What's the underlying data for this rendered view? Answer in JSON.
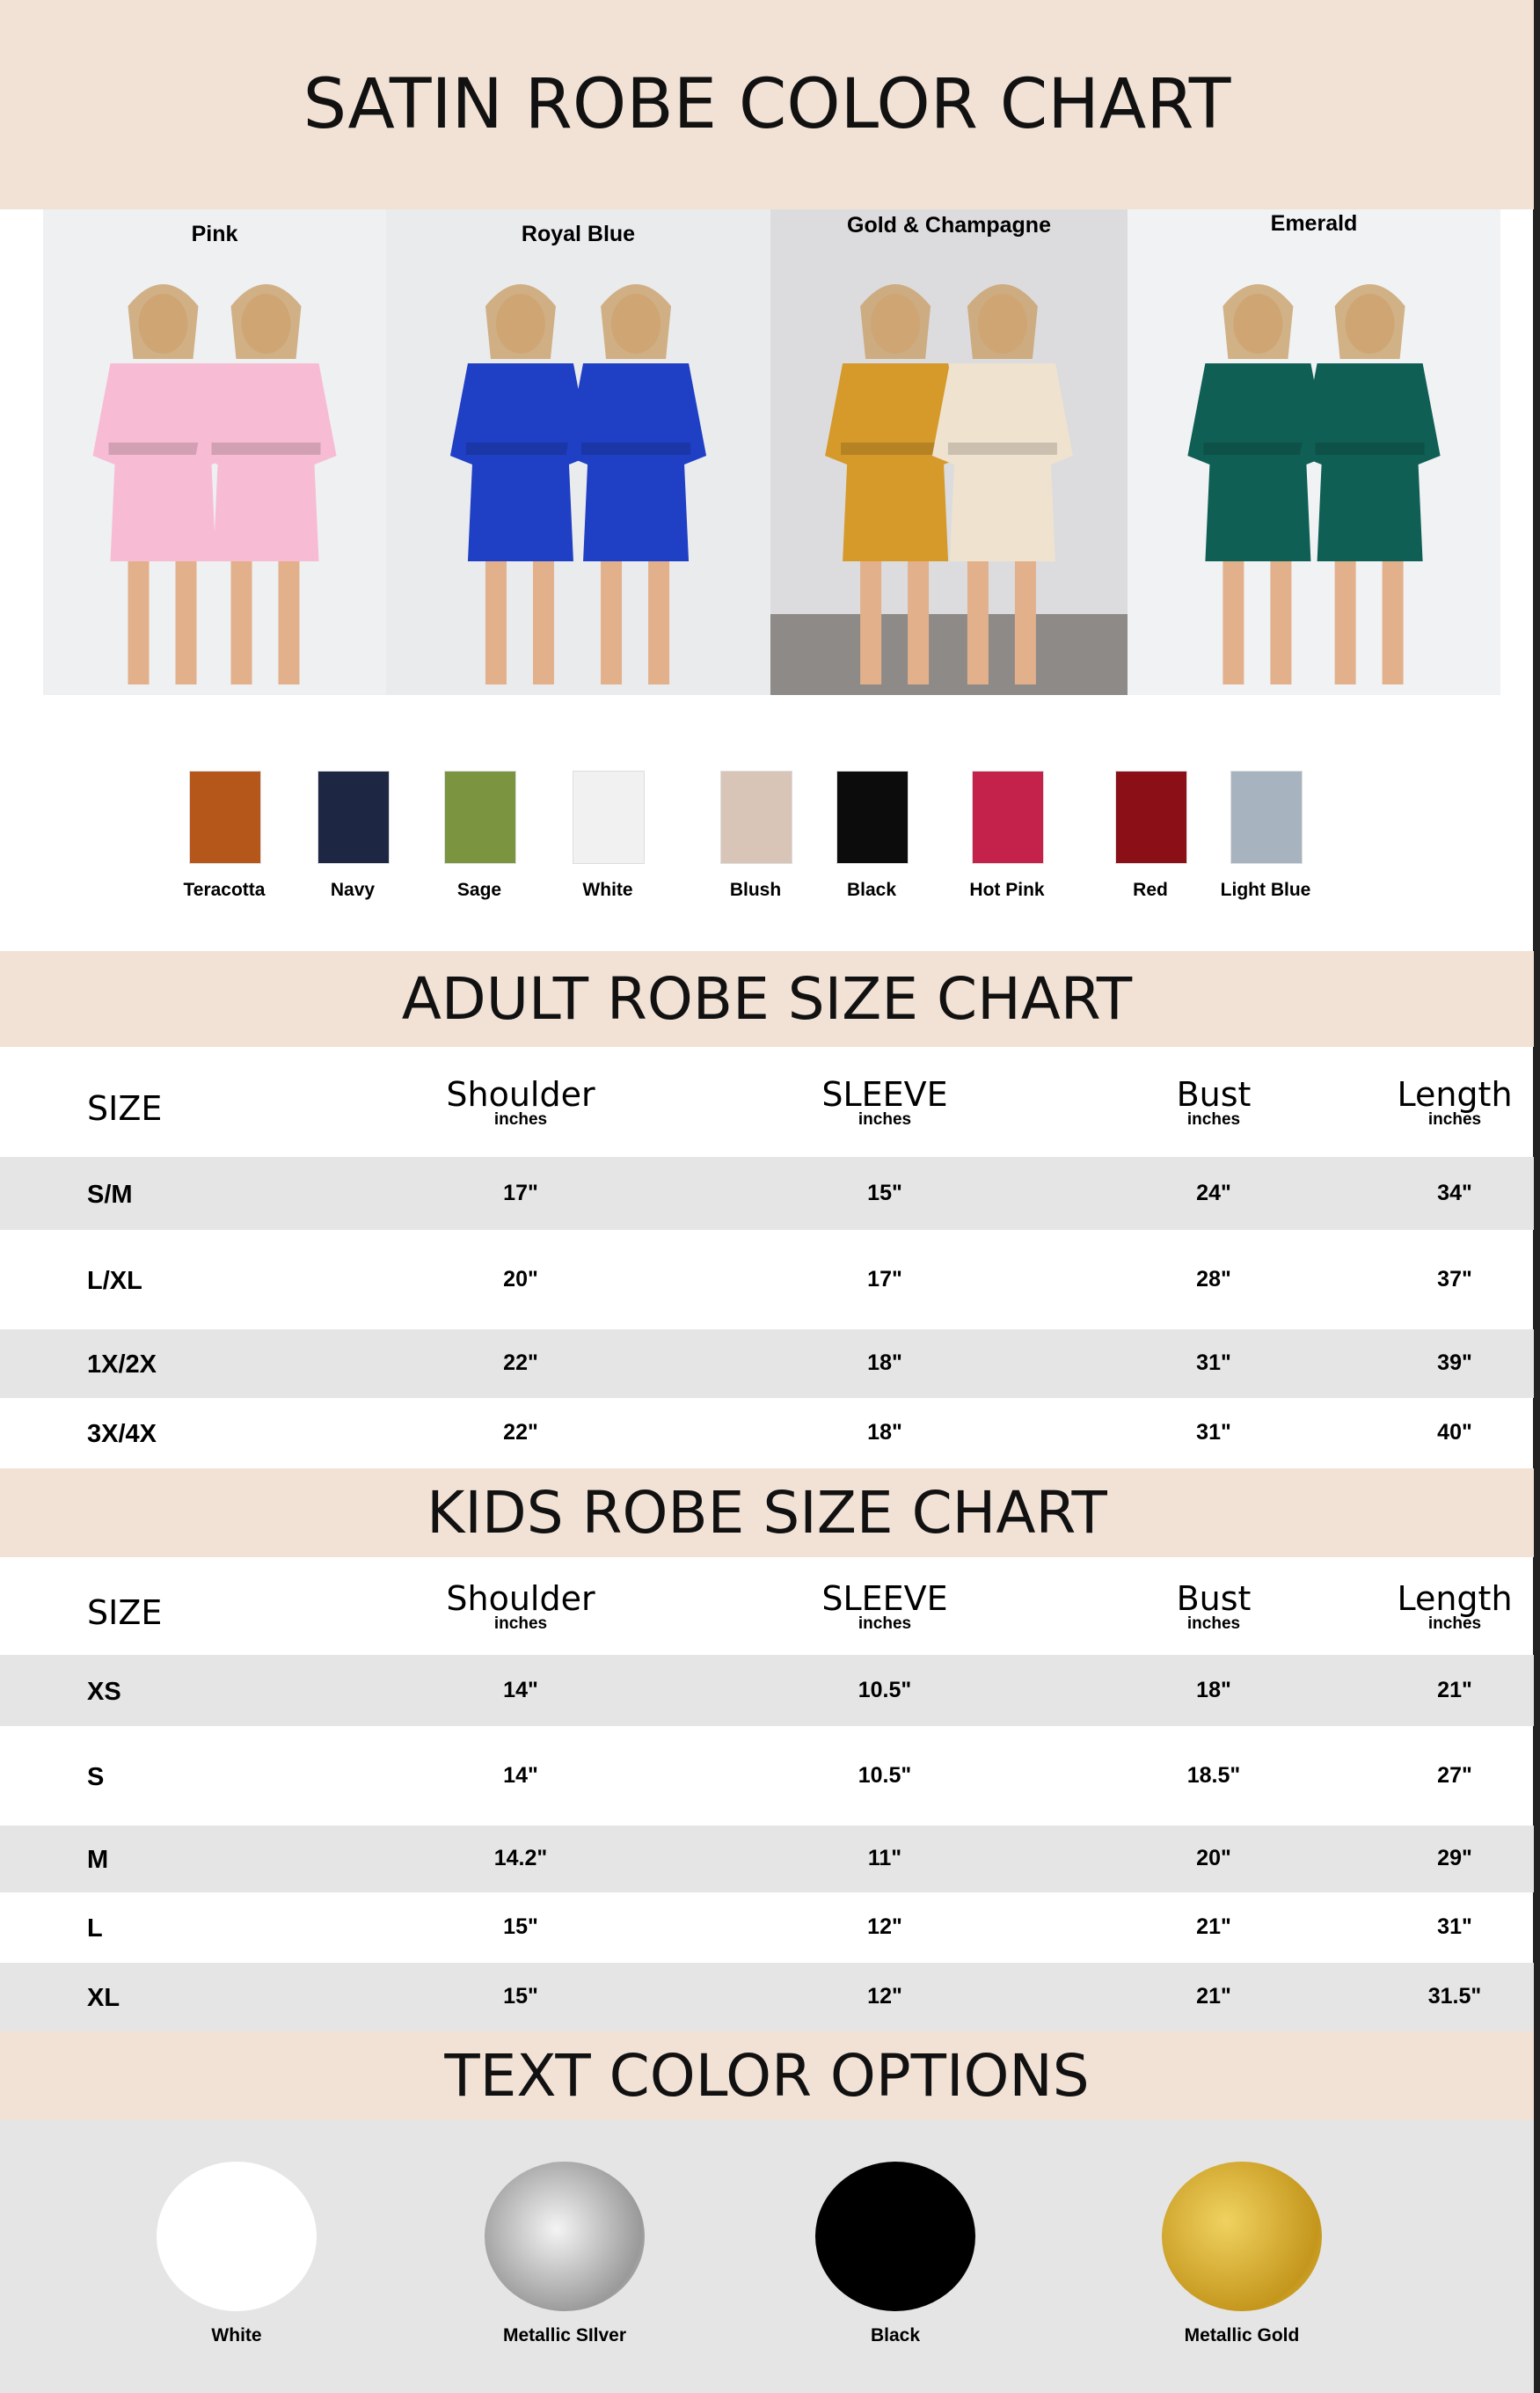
{
  "title": "SATIN ROBE COLOR CHART",
  "photos": [
    {
      "label": "Pink",
      "color": "#f7bcd3",
      "bg": "#eef0f2"
    },
    {
      "label": "Royal Blue",
      "color": "#1f3fc4",
      "bg": "#eaebed"
    },
    {
      "label": "Gold & Champagne",
      "color": "#d59a2a",
      "color2": "#efe2cf",
      "bg": "#dcdcde"
    },
    {
      "label": "Emerald",
      "color": "#0f5f55",
      "bg": "#f1f2f4"
    }
  ],
  "swatches": [
    {
      "label": "Teracotta",
      "color": "#b5561a"
    },
    {
      "label": "Navy",
      "color": "#1d2744"
    },
    {
      "label": "Sage",
      "color": "#7a9440"
    },
    {
      "label": "White",
      "color": "#f1f1f1"
    },
    {
      "label": "Blush",
      "color": "#d9c4b8"
    },
    {
      "label": "Black",
      "color": "#0c0c0c"
    },
    {
      "label": "Hot Pink",
      "color": "#c4224a"
    },
    {
      "label": "Red",
      "color": "#8a0f16"
    },
    {
      "label": "Light Blue",
      "color": "#a7b4c0"
    }
  ],
  "adult": {
    "title": "ADULT ROBE SIZE CHART",
    "headers": [
      {
        "label": "SIZE",
        "sub": ""
      },
      {
        "label": "Shoulder",
        "sub": "inches"
      },
      {
        "label": "SLEEVE",
        "sub": "inches"
      },
      {
        "label": "Bust",
        "sub": "inches"
      },
      {
        "label": "Length",
        "sub": "inches"
      }
    ],
    "rows": [
      [
        "S/M",
        "17\"",
        "15\"",
        "24\"",
        "34\""
      ],
      [
        "L/XL",
        "20\"",
        "17\"",
        "28\"",
        "37\""
      ],
      [
        "1X/2X",
        "22\"",
        "18\"",
        "31\"",
        "39\""
      ],
      [
        "3X/4X",
        "22\"",
        "18\"",
        "31\"",
        "40\""
      ]
    ]
  },
  "kids": {
    "title": "KIDS ROBE SIZE CHART",
    "headers": [
      {
        "label": "SIZE",
        "sub": ""
      },
      {
        "label": "Shoulder",
        "sub": "inches"
      },
      {
        "label": "SLEEVE",
        "sub": "inches"
      },
      {
        "label": "Bust",
        "sub": "inches"
      },
      {
        "label": "Length",
        "sub": "inches"
      }
    ],
    "rows": [
      [
        "XS",
        "14\"",
        "10.5\"",
        "18\"",
        "21\""
      ],
      [
        "S",
        "14\"",
        "10.5\"",
        "18.5\"",
        "27\""
      ],
      [
        "M",
        "14.2\"",
        "11\"",
        "20\"",
        "29\""
      ],
      [
        "L",
        "15\"",
        "12\"",
        "21\"",
        "31\""
      ],
      [
        "XL",
        "15\"",
        "12\"",
        "21\"",
        "31.5\""
      ]
    ]
  },
  "text_colors": {
    "title": "TEXT COLOR OPTIONS",
    "options": [
      {
        "label": "White",
        "color": "#ffffff"
      },
      {
        "label": "Metallic SIlver",
        "color": "#b8b8b8"
      },
      {
        "label": "Black",
        "color": "#000000"
      },
      {
        "label": "Metallic Gold",
        "color": "#d4aa2c"
      }
    ]
  }
}
